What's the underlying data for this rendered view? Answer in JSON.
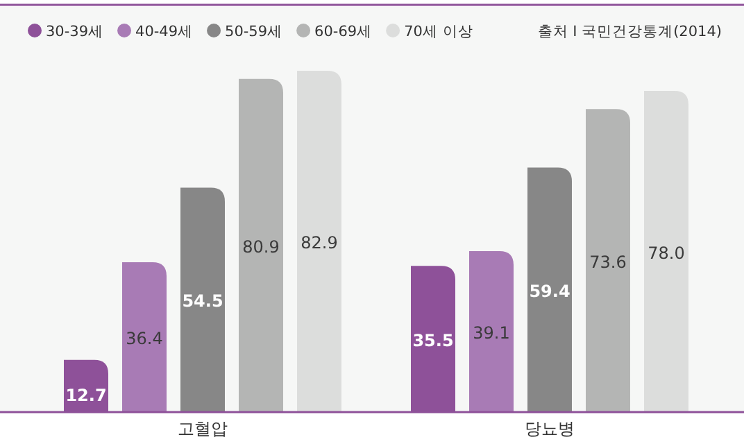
{
  "chart_data": {
    "type": "bar",
    "categories": [
      "고혈압",
      "당뇨병"
    ],
    "series": [
      {
        "name": "30-39세",
        "color": "#8e5199",
        "values": [
          12.7,
          35.5
        ],
        "value_labels": [
          "12.7",
          "35.5"
        ]
      },
      {
        "name": "40-49세",
        "color": "#a87bb5",
        "values": [
          36.4,
          39.1
        ],
        "value_labels": [
          "36.4",
          "39.1"
        ]
      },
      {
        "name": "50-59세",
        "color": "#878787",
        "values": [
          54.5,
          59.4
        ],
        "value_labels": [
          "54.5",
          "59.4"
        ]
      },
      {
        "name": "60-69세",
        "color": "#b4b5b4",
        "values": [
          80.9,
          73.6
        ],
        "value_labels": [
          "80.9",
          "73.6"
        ]
      },
      {
        "name": "70세 이상",
        "color": "#dcdddc",
        "values": [
          82.9,
          78.0
        ],
        "value_labels": [
          "82.9",
          "78.0"
        ]
      }
    ],
    "legend": "top left",
    "annotations": [
      "출처 I 국민건강통계(2014)"
    ]
  }
}
